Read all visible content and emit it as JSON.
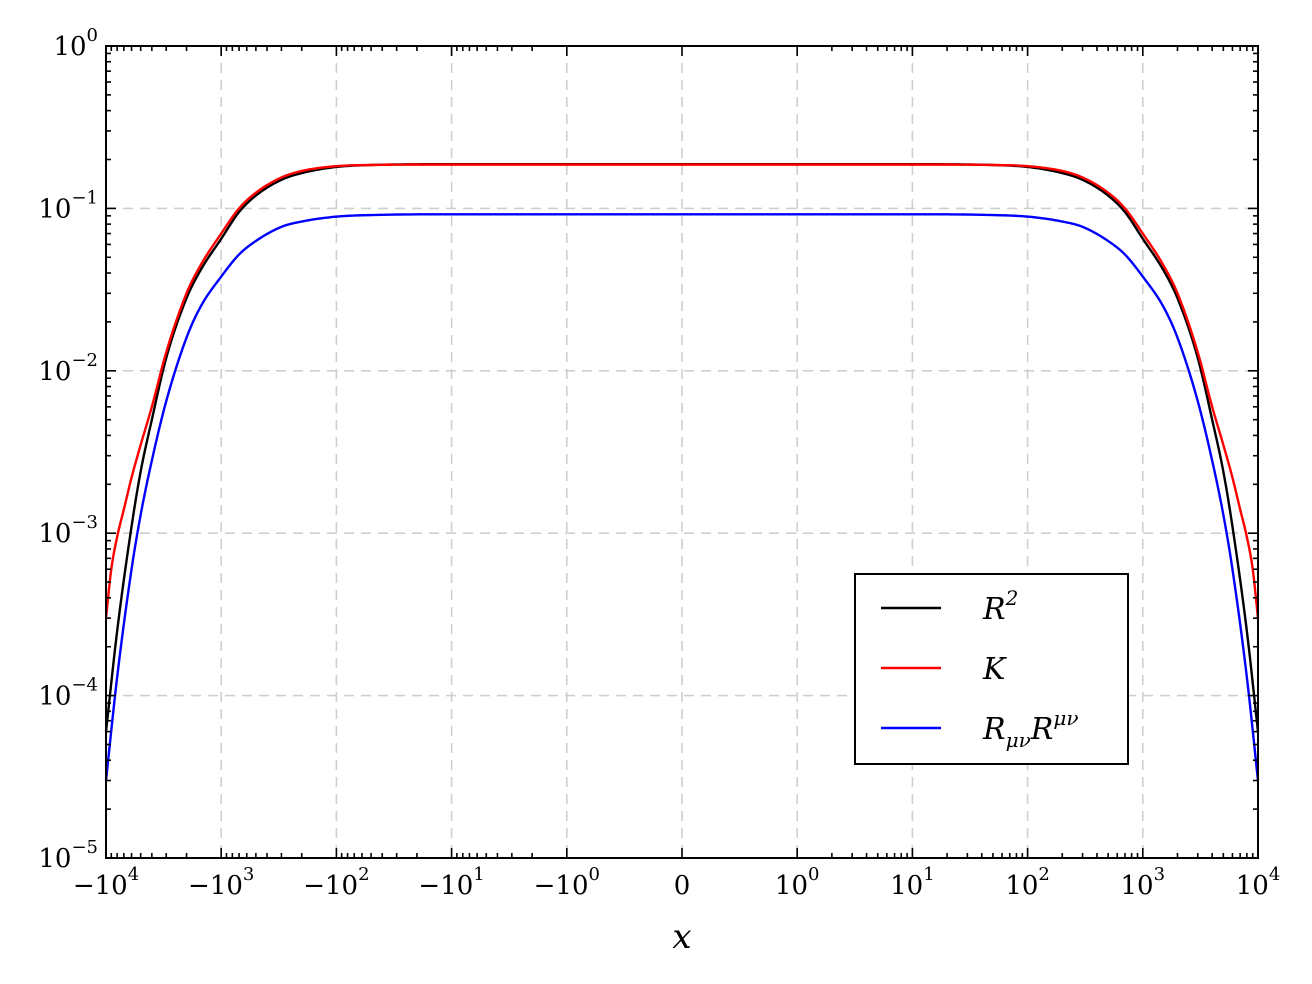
{
  "chart_data": {
    "type": "line",
    "xlabel": "x",
    "ylabel": "",
    "xscale": "symlog",
    "yscale": "log",
    "xlim": [
      -10000,
      10000
    ],
    "ylim": [
      1e-05,
      1
    ],
    "grid": true,
    "legend_position": "lower-right",
    "x_ticks": [
      {
        "value": -10000,
        "base": "−10",
        "exp": "4"
      },
      {
        "value": -1000,
        "base": "−10",
        "exp": "3"
      },
      {
        "value": -100,
        "base": "−10",
        "exp": "2"
      },
      {
        "value": -10,
        "base": "−10",
        "exp": "1"
      },
      {
        "value": -1,
        "base": "−10",
        "exp": "0"
      },
      {
        "value": 0,
        "base": "0",
        "exp": ""
      },
      {
        "value": 1,
        "base": "10",
        "exp": "0"
      },
      {
        "value": 10,
        "base": "10",
        "exp": "1"
      },
      {
        "value": 100,
        "base": "10",
        "exp": "2"
      },
      {
        "value": 1000,
        "base": "10",
        "exp": "3"
      },
      {
        "value": 10000,
        "base": "10",
        "exp": "4"
      }
    ],
    "y_ticks": [
      {
        "value": 1e-05,
        "base": "10",
        "exp": "−5"
      },
      {
        "value": 0.0001,
        "base": "10",
        "exp": "−4"
      },
      {
        "value": 0.001,
        "base": "10",
        "exp": "−3"
      },
      {
        "value": 0.01,
        "base": "10",
        "exp": "−2"
      },
      {
        "value": 0.1,
        "base": "10",
        "exp": "−1"
      },
      {
        "value": 1,
        "base": "10",
        "exp": "0"
      }
    ],
    "series": [
      {
        "name": "R2",
        "legend_base": "R",
        "legend_sup": "2",
        "legend_sub": "",
        "legend_base2": "",
        "legend_sup2": "",
        "color": "#000000",
        "x": [
          -10000,
          -8000,
          -6000,
          -5000,
          -4000,
          -3000,
          -2000,
          -1500,
          -1000,
          -700,
          -500,
          -300,
          -200,
          -100,
          -50,
          -10,
          -1,
          0,
          1,
          10,
          50,
          100,
          200,
          300,
          500,
          700,
          1000,
          1500,
          2000,
          3000,
          4000,
          5000,
          6000,
          8000,
          10000
        ],
        "y": [
          6e-05,
          0.00025,
          0.0011,
          0.0024,
          0.005,
          0.012,
          0.028,
          0.042,
          0.065,
          0.095,
          0.12,
          0.15,
          0.165,
          0.18,
          0.185,
          0.187,
          0.187,
          0.187,
          0.187,
          0.187,
          0.185,
          0.18,
          0.165,
          0.15,
          0.12,
          0.095,
          0.065,
          0.042,
          0.028,
          0.012,
          0.005,
          0.0024,
          0.0011,
          0.00025,
          6e-05
        ]
      },
      {
        "name": "K",
        "legend_base": "K",
        "legend_sup": "",
        "legend_sub": "",
        "legend_base2": "",
        "legend_sup2": "",
        "color": "#ff0000",
        "x": [
          -10000,
          -9000,
          -8000,
          -7000,
          -6000,
          -5000,
          -4000,
          -3000,
          -2000,
          -1500,
          -1000,
          -700,
          -500,
          -300,
          -200,
          -100,
          -50,
          -10,
          -1,
          0,
          1,
          10,
          50,
          100,
          200,
          300,
          500,
          700,
          1000,
          1500,
          2000,
          3000,
          4000,
          5000,
          6000,
          7000,
          8000,
          9000,
          10000
        ],
        "y": [
          0.0003,
          0.0006,
          0.00095,
          0.0014,
          0.0022,
          0.0035,
          0.006,
          0.013,
          0.03,
          0.045,
          0.07,
          0.1,
          0.125,
          0.155,
          0.17,
          0.182,
          0.185,
          0.186,
          0.186,
          0.186,
          0.186,
          0.186,
          0.185,
          0.182,
          0.17,
          0.155,
          0.125,
          0.1,
          0.07,
          0.045,
          0.03,
          0.013,
          0.006,
          0.0035,
          0.0022,
          0.0014,
          0.00095,
          0.0006,
          0.0003
        ]
      },
      {
        "name": "RmunuRmunu",
        "legend_base": "R",
        "legend_sup": "",
        "legend_sub": "μν",
        "legend_base2": "R",
        "legend_sup2": "μν",
        "color": "#0000ff",
        "x": [
          -10000,
          -8000,
          -6000,
          -5000,
          -4000,
          -3000,
          -2000,
          -1500,
          -1000,
          -700,
          -500,
          -300,
          -200,
          -100,
          -50,
          -10,
          -1,
          0,
          1,
          10,
          50,
          100,
          200,
          300,
          500,
          700,
          1000,
          1500,
          2000,
          3000,
          4000,
          5000,
          6000,
          8000,
          10000
        ],
        "y": [
          3e-05,
          0.00013,
          0.0006,
          0.0013,
          0.0028,
          0.0065,
          0.016,
          0.025,
          0.038,
          0.052,
          0.063,
          0.077,
          0.083,
          0.089,
          0.091,
          0.092,
          0.092,
          0.092,
          0.092,
          0.092,
          0.091,
          0.089,
          0.083,
          0.077,
          0.063,
          0.052,
          0.038,
          0.025,
          0.016,
          0.0065,
          0.0028,
          0.0013,
          0.0006,
          0.00013,
          3e-05
        ]
      }
    ]
  }
}
